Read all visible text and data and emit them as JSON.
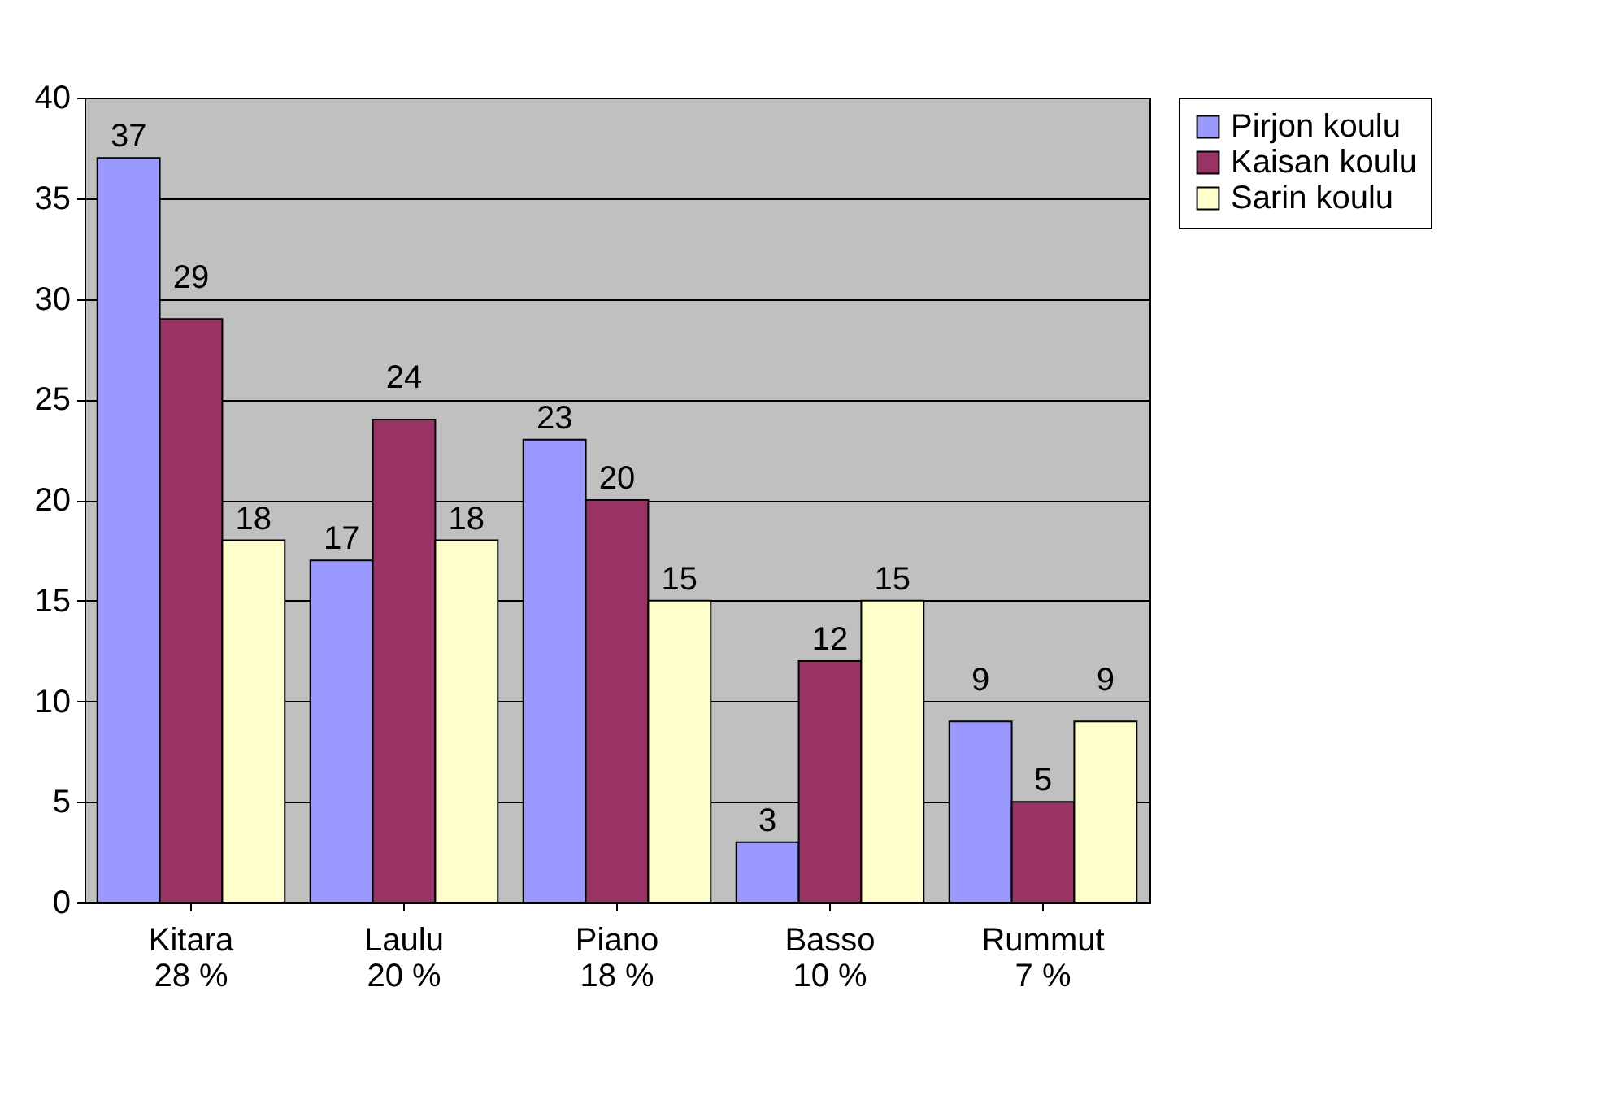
{
  "chart_data": {
    "type": "bar",
    "categories": [
      "Kitara\n28 %",
      "Laulu\n20 %",
      "Piano\n18 %",
      "Basso\n10 %",
      "Rummut\n7 %"
    ],
    "series": [
      {
        "name": "Pirjon koulu",
        "color": "#9999ff",
        "values": [
          37,
          17,
          23,
          3,
          9
        ]
      },
      {
        "name": "Kaisan koulu",
        "color": "#993366",
        "values": [
          29,
          24,
          20,
          12,
          5
        ]
      },
      {
        "name": "Sarin koulu",
        "color": "#ffffcc",
        "values": [
          18,
          18,
          15,
          15,
          9
        ]
      }
    ],
    "ylim": [
      0,
      40
    ],
    "yticks": [
      0,
      5,
      10,
      15,
      20,
      25,
      30,
      35,
      40
    ],
    "grid": "y",
    "legend": "right",
    "data_labels": true
  }
}
